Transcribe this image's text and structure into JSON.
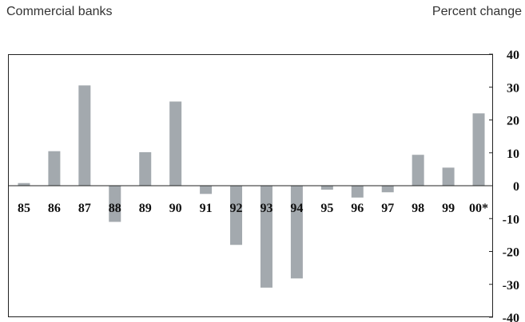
{
  "chart_data": {
    "type": "bar",
    "title": "Commercial banks",
    "ylabel": "Percent change",
    "categories": [
      "85",
      "86",
      "87",
      "88",
      "89",
      "90",
      "91",
      "92",
      "93",
      "94",
      "95",
      "96",
      "97",
      "98",
      "99",
      "00*"
    ],
    "values": [
      0.8,
      10.5,
      30.5,
      -11,
      10.2,
      25.6,
      -2.5,
      -18,
      -31,
      -28.2,
      -1.2,
      -3.6,
      -2,
      9.4,
      5.5,
      22
    ],
    "ylim": [
      -40,
      40
    ],
    "yticks": [
      "40",
      "30",
      "20",
      "10",
      "0",
      "-10",
      "-20",
      "-30",
      "-40"
    ],
    "grid": false,
    "bar_color": "#a3a9ae"
  }
}
